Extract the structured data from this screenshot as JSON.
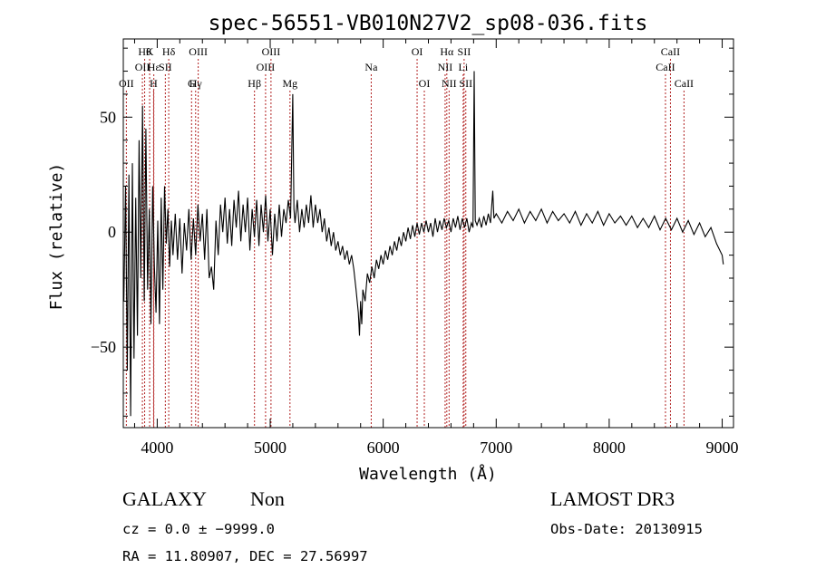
{
  "chart_data": {
    "type": "line",
    "title": "spec-56551-VB010N27V2_sp08-036.fits",
    "xlabel": "Wavelength (Å)",
    "ylabel": "Flux (relative)",
    "xlim": [
      3700,
      9100
    ],
    "ylim": [
      -85,
      84
    ],
    "x_ticks": [
      {
        "value": 4000,
        "label": "4000"
      },
      {
        "value": 5000,
        "label": "5000"
      },
      {
        "value": 6000,
        "label": "6000"
      },
      {
        "value": 7000,
        "label": "7000"
      },
      {
        "value": 8000,
        "label": "8000"
      },
      {
        "value": 9000,
        "label": "9000"
      }
    ],
    "y_ticks": [
      {
        "value": 50,
        "label": "50"
      },
      {
        "value": 0,
        "label": "0"
      },
      {
        "value": -50,
        "label": "−50"
      }
    ],
    "grid": false,
    "line_color": "#000000",
    "marker_color": "#b22222",
    "spectrum_points": [
      [
        3705,
        -30
      ],
      [
        3720,
        20
      ],
      [
        3735,
        -60
      ],
      [
        3750,
        25
      ],
      [
        3765,
        -80
      ],
      [
        3780,
        30
      ],
      [
        3795,
        -55
      ],
      [
        3810,
        15
      ],
      [
        3825,
        -45
      ],
      [
        3840,
        40
      ],
      [
        3855,
        -20
      ],
      [
        3870,
        55
      ],
      [
        3885,
        -30
      ],
      [
        3900,
        45
      ],
      [
        3915,
        -25
      ],
      [
        3930,
        10
      ],
      [
        3945,
        -40
      ],
      [
        3960,
        20
      ],
      [
        3975,
        -15
      ],
      [
        3990,
        -35
      ],
      [
        4005,
        5
      ],
      [
        4020,
        -40
      ],
      [
        4035,
        15
      ],
      [
        4050,
        -25
      ],
      [
        4065,
        20
      ],
      [
        4080,
        -5
      ],
      [
        4095,
        10
      ],
      [
        4110,
        -15
      ],
      [
        4125,
        5
      ],
      [
        4140,
        -10
      ],
      [
        4160,
        8
      ],
      [
        4180,
        -12
      ],
      [
        4200,
        6
      ],
      [
        4220,
        -18
      ],
      [
        4240,
        4
      ],
      [
        4260,
        -8
      ],
      [
        4280,
        10
      ],
      [
        4300,
        -12
      ],
      [
        4320,
        6
      ],
      [
        4340,
        -10
      ],
      [
        4360,
        12
      ],
      [
        4380,
        -4
      ],
      [
        4400,
        8
      ],
      [
        4420,
        -12
      ],
      [
        4440,
        10
      ],
      [
        4460,
        -20
      ],
      [
        4480,
        -15
      ],
      [
        4500,
        -25
      ],
      [
        4520,
        5
      ],
      [
        4540,
        -10
      ],
      [
        4560,
        12
      ],
      [
        4580,
        0
      ],
      [
        4600,
        15
      ],
      [
        4620,
        -5
      ],
      [
        4640,
        10
      ],
      [
        4660,
        -6
      ],
      [
        4680,
        14
      ],
      [
        4700,
        2
      ],
      [
        4720,
        18
      ],
      [
        4740,
        -4
      ],
      [
        4760,
        12
      ],
      [
        4780,
        0
      ],
      [
        4800,
        15
      ],
      [
        4820,
        -8
      ],
      [
        4840,
        10
      ],
      [
        4860,
        -2
      ],
      [
        4880,
        14
      ],
      [
        4900,
        -6
      ],
      [
        4920,
        12
      ],
      [
        4940,
        0
      ],
      [
        4960,
        16
      ],
      [
        4980,
        -4
      ],
      [
        5000,
        10
      ],
      [
        5020,
        -10
      ],
      [
        5040,
        8
      ],
      [
        5060,
        -4
      ],
      [
        5080,
        12
      ],
      [
        5100,
        -2
      ],
      [
        5120,
        10
      ],
      [
        5140,
        4
      ],
      [
        5160,
        14
      ],
      [
        5180,
        6
      ],
      [
        5200,
        60
      ],
      [
        5210,
        10
      ],
      [
        5220,
        4
      ],
      [
        5240,
        14
      ],
      [
        5260,
        0
      ],
      [
        5280,
        10
      ],
      [
        5300,
        2
      ],
      [
        5320,
        12
      ],
      [
        5340,
        4
      ],
      [
        5360,
        16
      ],
      [
        5380,
        2
      ],
      [
        5400,
        12
      ],
      [
        5420,
        4
      ],
      [
        5440,
        10
      ],
      [
        5460,
        0
      ],
      [
        5480,
        6
      ],
      [
        5500,
        -4
      ],
      [
        5520,
        2
      ],
      [
        5540,
        -6
      ],
      [
        5560,
        0
      ],
      [
        5580,
        -8
      ],
      [
        5600,
        -4
      ],
      [
        5620,
        -10
      ],
      [
        5640,
        -6
      ],
      [
        5660,
        -12
      ],
      [
        5680,
        -8
      ],
      [
        5700,
        -14
      ],
      [
        5720,
        -10
      ],
      [
        5740,
        -16
      ],
      [
        5760,
        -25
      ],
      [
        5780,
        -35
      ],
      [
        5790,
        -45
      ],
      [
        5800,
        -30
      ],
      [
        5810,
        -40
      ],
      [
        5820,
        -25
      ],
      [
        5840,
        -30
      ],
      [
        5860,
        -18
      ],
      [
        5880,
        -22
      ],
      [
        5900,
        -15
      ],
      [
        5920,
        -20
      ],
      [
        5940,
        -12
      ],
      [
        5960,
        -16
      ],
      [
        5980,
        -10
      ],
      [
        6000,
        -14
      ],
      [
        6020,
        -8
      ],
      [
        6040,
        -12
      ],
      [
        6060,
        -6
      ],
      [
        6080,
        -10
      ],
      [
        6100,
        -4
      ],
      [
        6120,
        -8
      ],
      [
        6140,
        -2
      ],
      [
        6160,
        -6
      ],
      [
        6180,
        0
      ],
      [
        6200,
        -4
      ],
      [
        6220,
        2
      ],
      [
        6240,
        -3
      ],
      [
        6260,
        3
      ],
      [
        6280,
        -2
      ],
      [
        6300,
        4
      ],
      [
        6320,
        -1
      ],
      [
        6340,
        4
      ],
      [
        6360,
        0
      ],
      [
        6380,
        5
      ],
      [
        6400,
        0
      ],
      [
        6420,
        4
      ],
      [
        6440,
        -2
      ],
      [
        6460,
        6
      ],
      [
        6480,
        0
      ],
      [
        6500,
        5
      ],
      [
        6520,
        1
      ],
      [
        6540,
        6
      ],
      [
        6560,
        2
      ],
      [
        6580,
        5
      ],
      [
        6600,
        0
      ],
      [
        6620,
        6
      ],
      [
        6640,
        2
      ],
      [
        6660,
        7
      ],
      [
        6680,
        1
      ],
      [
        6700,
        6
      ],
      [
        6720,
        2
      ],
      [
        6740,
        6
      ],
      [
        6760,
        0
      ],
      [
        6780,
        4
      ],
      [
        6795,
        2
      ],
      [
        6805,
        70
      ],
      [
        6815,
        5
      ],
      [
        6830,
        3
      ],
      [
        6850,
        6
      ],
      [
        6870,
        2
      ],
      [
        6890,
        7
      ],
      [
        6910,
        3
      ],
      [
        6930,
        8
      ],
      [
        6950,
        4
      ],
      [
        6970,
        18
      ],
      [
        6980,
        6
      ],
      [
        7000,
        8
      ],
      [
        7050,
        4
      ],
      [
        7100,
        9
      ],
      [
        7150,
        5
      ],
      [
        7200,
        10
      ],
      [
        7250,
        4
      ],
      [
        7300,
        9
      ],
      [
        7350,
        5
      ],
      [
        7400,
        10
      ],
      [
        7450,
        4
      ],
      [
        7500,
        9
      ],
      [
        7550,
        5
      ],
      [
        7600,
        8
      ],
      [
        7650,
        4
      ],
      [
        7700,
        9
      ],
      [
        7750,
        3
      ],
      [
        7800,
        8
      ],
      [
        7850,
        4
      ],
      [
        7900,
        9
      ],
      [
        7950,
        3
      ],
      [
        8000,
        8
      ],
      [
        8050,
        4
      ],
      [
        8100,
        7
      ],
      [
        8150,
        3
      ],
      [
        8200,
        7
      ],
      [
        8250,
        2
      ],
      [
        8300,
        6
      ],
      [
        8350,
        2
      ],
      [
        8400,
        7
      ],
      [
        8450,
        1
      ],
      [
        8500,
        6
      ],
      [
        8550,
        1
      ],
      [
        8600,
        6
      ],
      [
        8650,
        0
      ],
      [
        8700,
        5
      ],
      [
        8750,
        -1
      ],
      [
        8800,
        4
      ],
      [
        8850,
        -2
      ],
      [
        8900,
        2
      ],
      [
        8950,
        -5
      ],
      [
        9000,
        -10
      ],
      [
        9010,
        -14
      ]
    ],
    "line_markers": [
      {
        "wavelength": 3727,
        "label": "OII",
        "row": 3
      },
      {
        "wavelength": 3869,
        "label": "OII",
        "row": 2
      },
      {
        "wavelength": 3889,
        "label": "Hθ",
        "row": 1
      },
      {
        "wavelength": 3933,
        "label": "K",
        "row": 1
      },
      {
        "wavelength": 3968,
        "label": "H",
        "row": 3
      },
      {
        "wavelength": 3970,
        "label": "Hε",
        "row": 2
      },
      {
        "wavelength": 4072,
        "label": "SII",
        "row": 2
      },
      {
        "wavelength": 4102,
        "label": "Hδ",
        "row": 1
      },
      {
        "wavelength": 4304,
        "label": "G",
        "row": 3
      },
      {
        "wavelength": 4340,
        "label": "Hγ",
        "row": 3
      },
      {
        "wavelength": 4363,
        "label": "OIII",
        "row": 1
      },
      {
        "wavelength": 4861,
        "label": "Hβ",
        "row": 3
      },
      {
        "wavelength": 4959,
        "label": "OIII",
        "row": 2
      },
      {
        "wavelength": 5007,
        "label": "OIII",
        "row": 1
      },
      {
        "wavelength": 5175,
        "label": "Mg",
        "row": 3
      },
      {
        "wavelength": 5894,
        "label": "Na",
        "row": 2
      },
      {
        "wavelength": 6300,
        "label": "OI",
        "row": 1
      },
      {
        "wavelength": 6364,
        "label": "OI",
        "row": 3
      },
      {
        "wavelength": 6548,
        "label": "NII",
        "row": 2
      },
      {
        "wavelength": 6563,
        "label": "Hα",
        "row": 1
      },
      {
        "wavelength": 6583,
        "label": "NII",
        "row": 3
      },
      {
        "wavelength": 6708,
        "label": "Li",
        "row": 2
      },
      {
        "wavelength": 6716,
        "label": "SII",
        "row": 1
      },
      {
        "wavelength": 6731,
        "label": "SII",
        "row": 3
      },
      {
        "wavelength": 8498,
        "label": "CaII",
        "row": 2
      },
      {
        "wavelength": 8542,
        "label": "CaII",
        "row": 1
      },
      {
        "wavelength": 8662,
        "label": "CaII",
        "row": 3
      }
    ]
  },
  "info": {
    "class": "GALAXY",
    "subclass": "Non",
    "survey": "LAMOST DR3",
    "cz": "cz = 0.0 ± −9999.0",
    "obs_date": "Obs-Date: 20130915",
    "coords": "RA =  11.80907, DEC =  27.56997"
  }
}
